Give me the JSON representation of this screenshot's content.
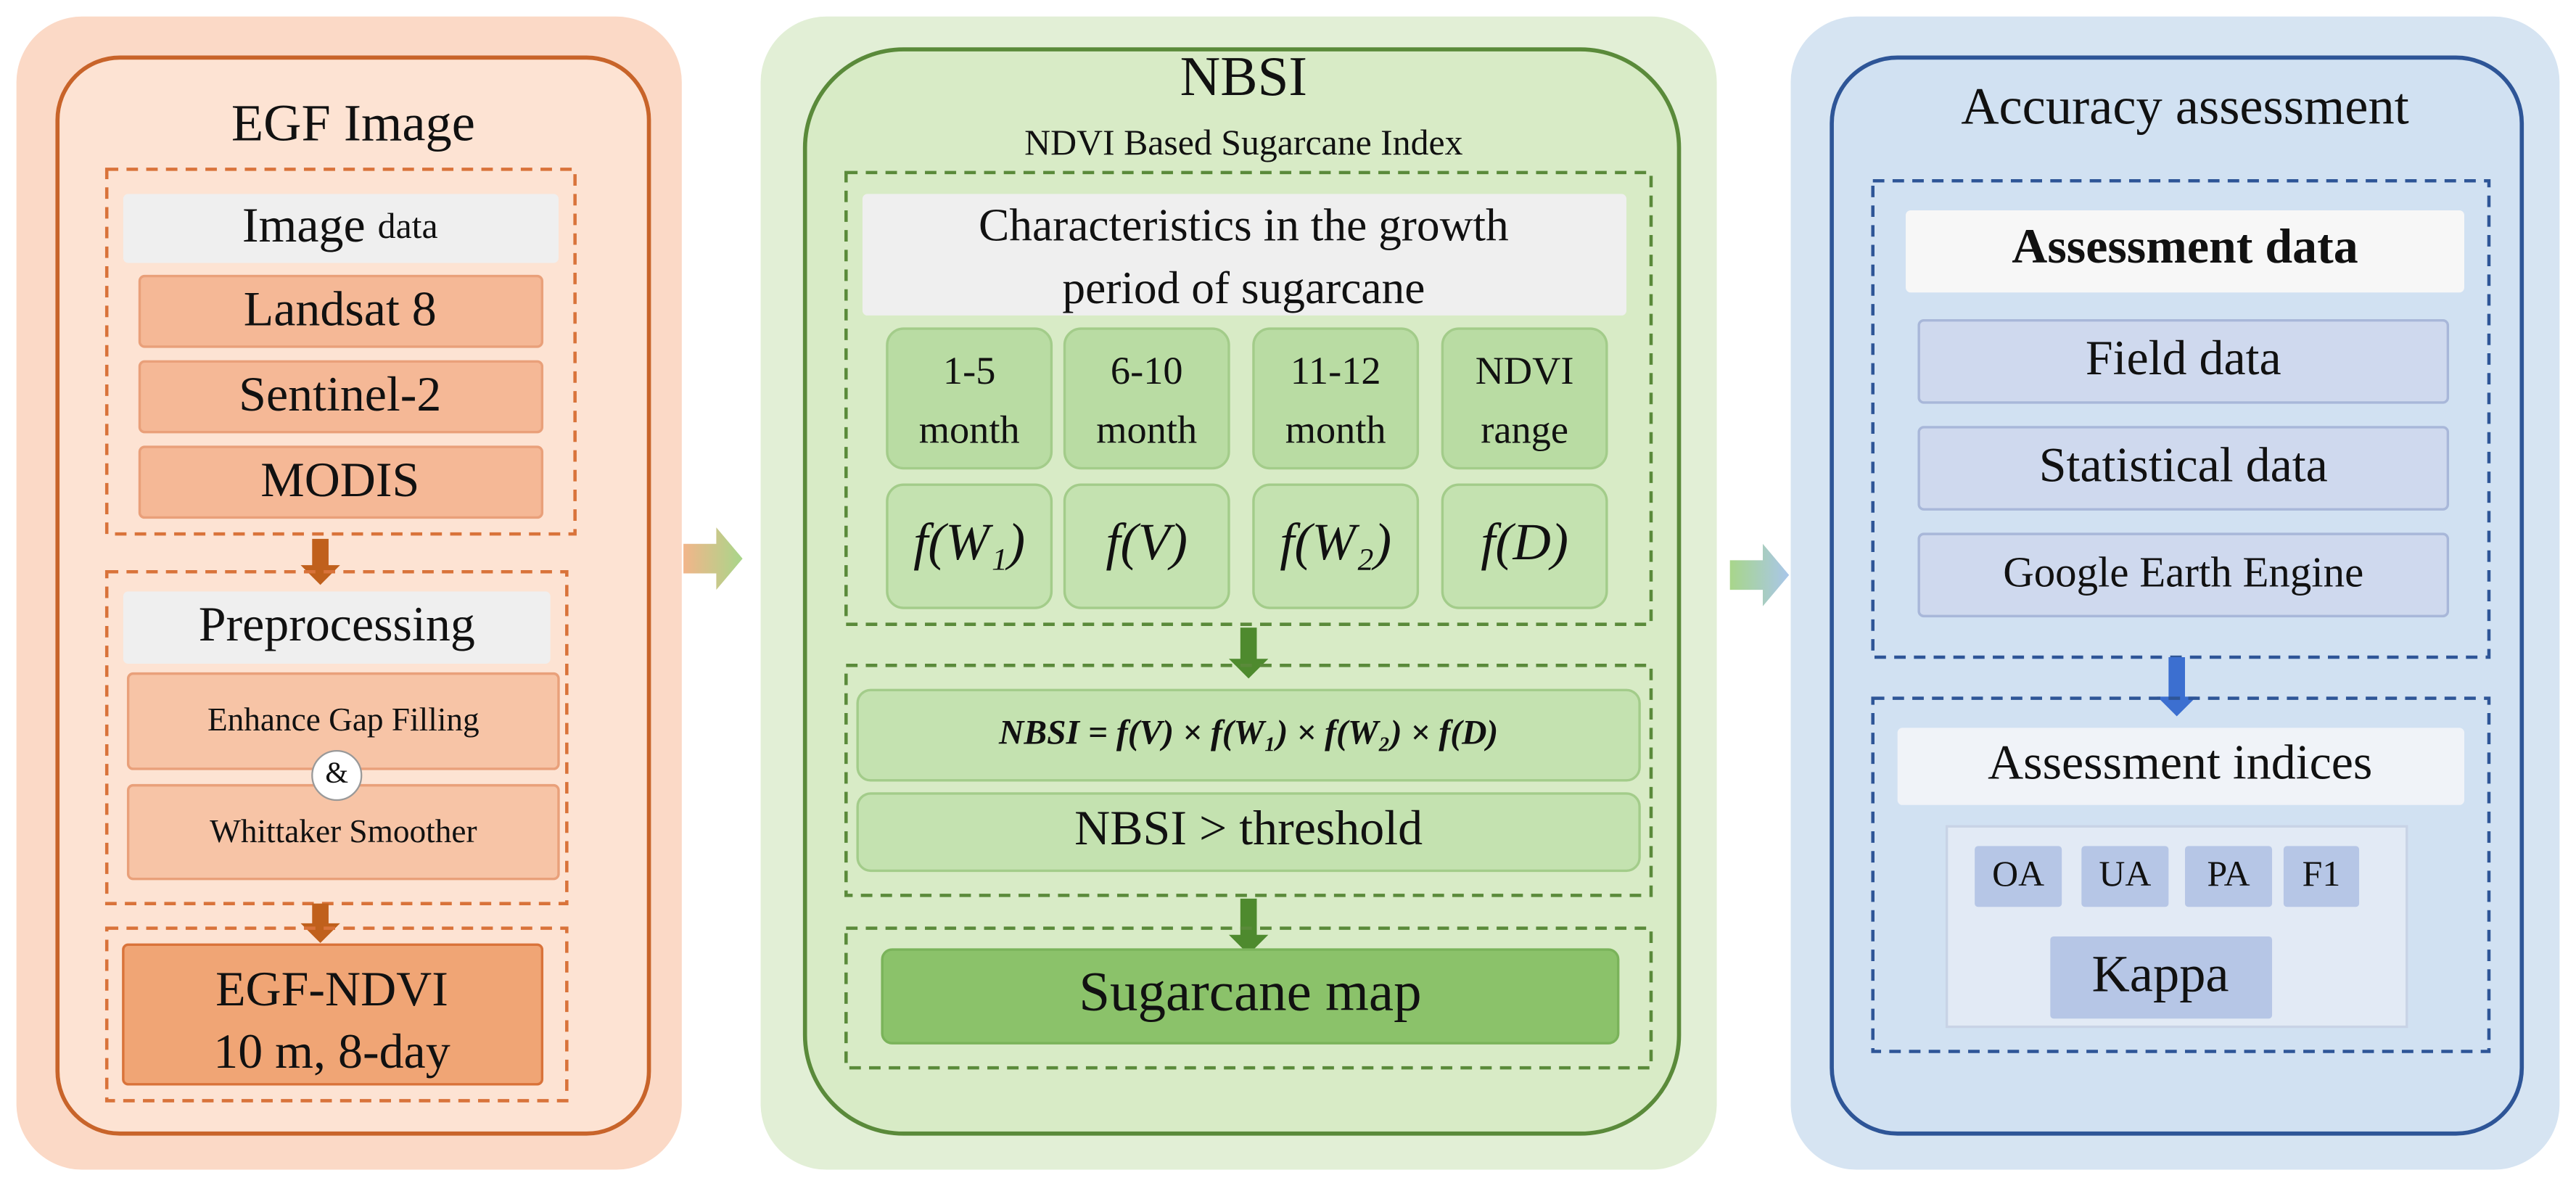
{
  "panels": [
    {
      "title": "EGF Image",
      "sections": [
        {
          "header": {
            "main": "Image",
            "suffix": "data"
          },
          "items": [
            "Landsat 8",
            "Sentinel-2",
            "MODIS"
          ]
        },
        {
          "header": "Preprocessing",
          "items": [
            "Enhance Gap Filling",
            "&",
            "Whittaker Smoother"
          ]
        },
        {
          "items": [
            "EGF-NDVI",
            "10 m, 8-day"
          ]
        }
      ]
    },
    {
      "title": "NBSI",
      "subtitle": "NDVI Based Sugarcane Index",
      "sections": [
        {
          "header": [
            "Characteristics in the growth",
            "period of sugarcane"
          ],
          "periods": [
            [
              "1-5",
              "month"
            ],
            [
              "6-10",
              "month"
            ],
            [
              "11-12",
              "month"
            ],
            [
              "NDVI",
              "range"
            ]
          ],
          "functions": [
            "f(W₁)",
            "f(V)",
            "f(W₂)",
            "f(D)"
          ]
        },
        {
          "items": [
            "NBSI = f(V) × f(W₁) × f(W₂) × f(D)",
            "NBSI > threshold"
          ]
        },
        {
          "items": [
            "Sugarcane map"
          ]
        }
      ]
    },
    {
      "title": "Accuracy assessment",
      "sections": [
        {
          "header": "Assessment data",
          "items": [
            "Field data",
            "Statistical data",
            "Google Earth Engine"
          ]
        },
        {
          "header": "Assessment indices",
          "items": [
            "OA",
            "UA",
            "PA",
            "F1",
            "Kappa"
          ]
        }
      ]
    }
  ]
}
